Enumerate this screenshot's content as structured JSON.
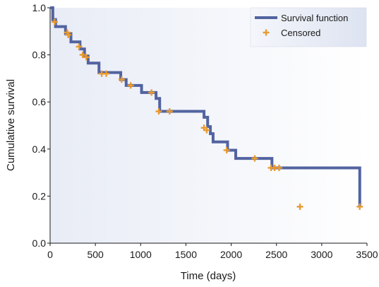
{
  "chart_data": {
    "type": "line",
    "xlabel": "Time (days)",
    "ylabel": "Cumulative survival",
    "xlim": [
      0,
      3500
    ],
    "ylim": [
      0.0,
      1.0
    ],
    "x_ticks": [
      0,
      500,
      1000,
      1500,
      2000,
      2500,
      3000,
      3500
    ],
    "x_tick_labels": [
      "0",
      "500",
      "1000",
      "1500",
      "2000",
      "2500",
      "3000",
      "3500"
    ],
    "y_ticks": [
      0.0,
      0.2,
      0.4,
      0.6,
      0.8,
      1.0
    ],
    "y_tick_labels": [
      "0.0",
      "0.2",
      "0.4",
      "0.6",
      "0.8",
      "1.0"
    ],
    "grid": false,
    "legend_position": "top-right",
    "series": [
      {
        "name": "Survival function",
        "kind": "step",
        "color": "#5263a0",
        "x": [
          0,
          30,
          60,
          170,
          230,
          330,
          380,
          420,
          540,
          780,
          840,
          1010,
          1170,
          1210,
          1650,
          1700,
          1740,
          1770,
          1800,
          1960,
          2050,
          2250,
          2420,
          2450,
          2760,
          3420
        ],
        "y": [
          1.0,
          0.95,
          0.92,
          0.89,
          0.855,
          0.825,
          0.795,
          0.765,
          0.725,
          0.695,
          0.67,
          0.64,
          0.615,
          0.56,
          0.56,
          0.535,
          0.495,
          0.465,
          0.43,
          0.395,
          0.36,
          0.36,
          0.36,
          0.32,
          0.32,
          0.155
        ]
      },
      {
        "name": "Censored",
        "kind": "marker",
        "color": "#e89a30",
        "x": [
          50,
          190,
          200,
          320,
          360,
          400,
          570,
          620,
          790,
          890,
          1120,
          1200,
          1320,
          1700,
          1730,
          1950,
          2260,
          2440,
          2480,
          2530,
          2760,
          3420
        ],
        "y": [
          0.94,
          0.895,
          0.885,
          0.835,
          0.8,
          0.79,
          0.72,
          0.72,
          0.695,
          0.67,
          0.64,
          0.56,
          0.56,
          0.49,
          0.48,
          0.395,
          0.36,
          0.32,
          0.32,
          0.32,
          0.155,
          0.155
        ]
      }
    ]
  }
}
